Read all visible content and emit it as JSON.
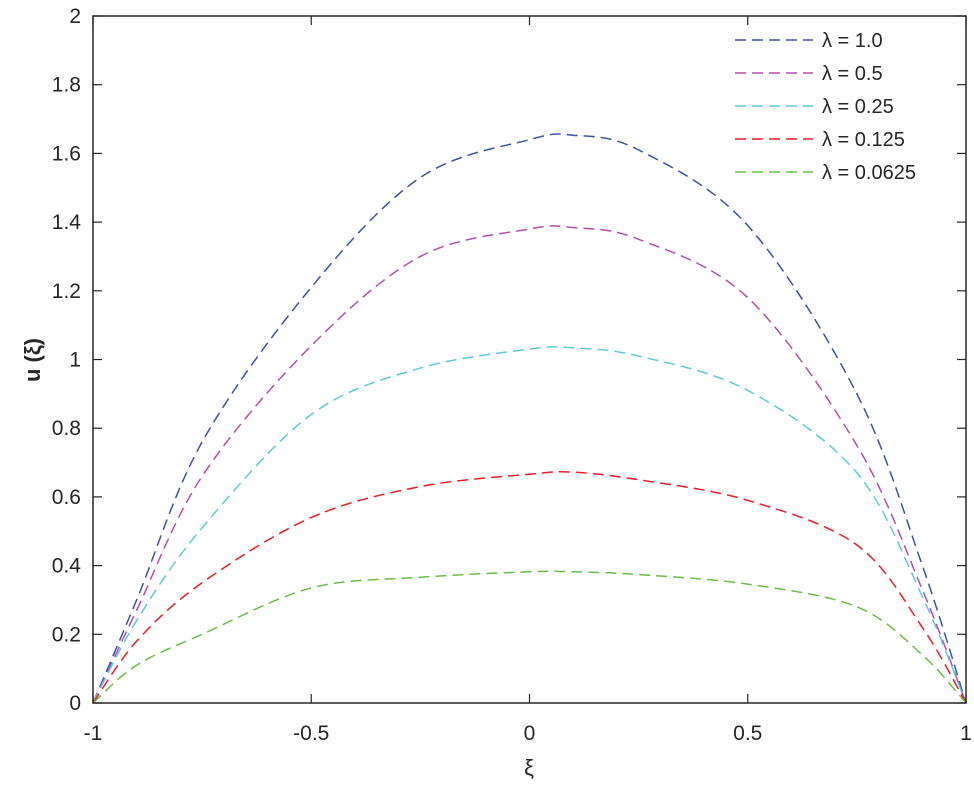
{
  "chart_data": {
    "type": "line",
    "xlabel": "ξ",
    "ylabel": "u (ξ)",
    "xlim": [
      -1,
      1
    ],
    "ylim": [
      0,
      2
    ],
    "xticks": [
      "-1",
      "-0.5",
      "0",
      "0.5",
      "1"
    ],
    "yticks": [
      "0",
      "0.2",
      "0.4",
      "0.6",
      "0.8",
      "1",
      "1.2",
      "1.4",
      "1.6",
      "1.8",
      "2"
    ],
    "grid": false,
    "legend_position": "top-right",
    "line_style": "dashed",
    "x": [
      -1,
      -0.9,
      -0.75,
      -0.5,
      -0.25,
      0,
      0.1,
      0.25,
      0.5,
      0.75,
      0.9,
      1
    ],
    "series": [
      {
        "name": "λ = 1.0",
        "color": "#3a53a4",
        "values": [
          0,
          0.3,
          0.76,
          1.21,
          1.53,
          1.64,
          1.653,
          1.61,
          1.39,
          0.9,
          0.4,
          0
        ]
      },
      {
        "name": "λ = 0.5",
        "color": "#b24fae",
        "values": [
          0,
          0.27,
          0.66,
          1.04,
          1.3,
          1.38,
          1.384,
          1.35,
          1.18,
          0.75,
          0.33,
          0
        ]
      },
      {
        "name": "λ = 0.25",
        "color": "#5dc9db",
        "values": [
          0,
          0.24,
          0.51,
          0.84,
          0.975,
          1.03,
          1.034,
          1.01,
          0.91,
          0.67,
          0.31,
          0
        ]
      },
      {
        "name": "λ = 0.125",
        "color": "#ee1c25",
        "values": [
          0,
          0.18,
          0.35,
          0.54,
          0.63,
          0.666,
          0.672,
          0.65,
          0.59,
          0.46,
          0.22,
          0
        ]
      },
      {
        "name": "λ = 0.0625",
        "color": "#6cbd45",
        "values": [
          0,
          0.11,
          0.2,
          0.335,
          0.366,
          0.382,
          0.382,
          0.374,
          0.346,
          0.28,
          0.14,
          0
        ]
      }
    ]
  }
}
